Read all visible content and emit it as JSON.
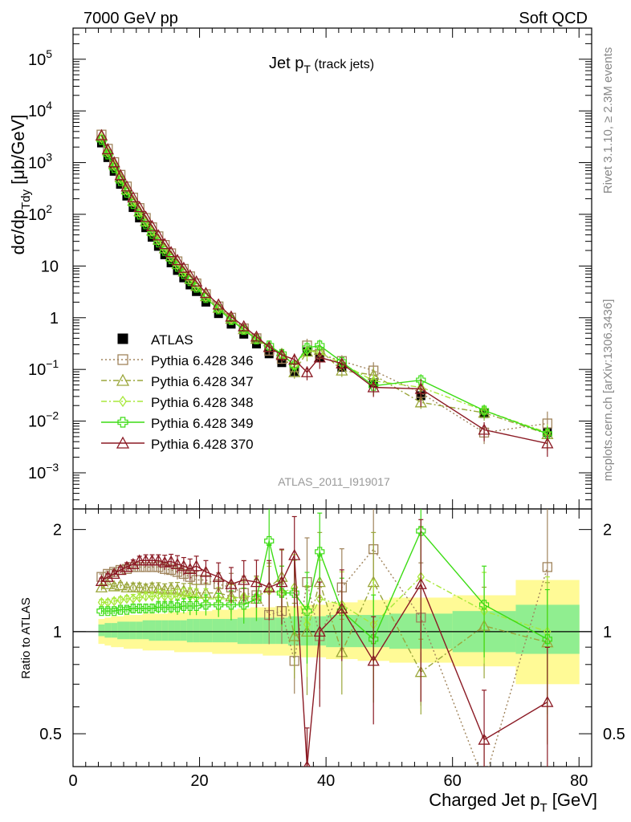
{
  "header": {
    "left_label": "7000 GeV pp",
    "right_label": "Soft QCD"
  },
  "side": {
    "rivet_label": "Rivet 3.1.10, ≥ 2.3M events",
    "mcplots_label": "mcplots.cern.ch [arXiv:1306.3436]"
  },
  "chart_data": {
    "type": "scatter",
    "title": "Jet p",
    "title_sub": "T",
    "title_suffix": " (track jets)",
    "analysis_id": "ATLAS_2011_I919017",
    "xlabel": "Charged Jet p",
    "xlabel_sub": "T",
    "xlabel_suffix": " [GeV]",
    "ylabel": "dσ/dp",
    "ylabel_sub": "Tdy",
    "ylabel_suffix": " [μb/GeV]",
    "ratio_ylabel": "Ratio to ATLAS",
    "xlim": [
      0,
      82
    ],
    "ylim": [
      0.0002,
      400000
    ],
    "yscale": "log",
    "ratio_ylim": [
      0.4,
      2.3
    ],
    "ratio_yscale": "log",
    "x_ticks": [
      "0",
      "20",
      "40",
      "60",
      "80"
    ],
    "y_ticks": [
      "10^-3",
      "10^-2",
      "10^-1",
      "1",
      "10",
      "10^2",
      "10^3",
      "10^4",
      "10^5"
    ],
    "ratio_ticks": [
      "0.5",
      "1",
      "2"
    ],
    "legend_position": "middle-left",
    "data": {
      "name": "ATLAS",
      "x": [
        4.5,
        5.5,
        6.5,
        7.5,
        8.5,
        9.5,
        10.5,
        11.5,
        12.5,
        13.5,
        14.5,
        15.5,
        16.5,
        17.5,
        18.5,
        19.5,
        21,
        23,
        25,
        27,
        29,
        31,
        33,
        35,
        37,
        39,
        42.5,
        47.5,
        55,
        65,
        75
      ],
      "y": [
        2400,
        1250,
        680,
        380,
        225,
        135,
        85,
        55,
        36,
        24,
        16.5,
        11.5,
        8.2,
        5.9,
        4.3,
        3.2,
        2.0,
        1.2,
        0.75,
        0.48,
        0.31,
        0.2,
        0.135,
        0.091,
        0.22,
        0.17,
        0.11,
        0.055,
        0.031,
        0.014,
        0.006
      ]
    },
    "series": [
      {
        "name": "Pythia 6.428 346",
        "color": "#a0845c",
        "marker": "square",
        "dash": "dotted",
        "x": [
          4.5,
          5.5,
          6.5,
          7.5,
          8.5,
          9.5,
          10.5,
          11.5,
          12.5,
          13.5,
          14.5,
          15.5,
          16.5,
          17.5,
          18.5,
          19.5,
          21,
          23,
          25,
          27,
          29,
          31,
          33,
          35,
          37,
          39,
          42.5,
          47.5,
          55,
          65,
          75
        ],
        "y": [
          3480,
          1850,
          1020,
          580,
          345,
          210,
          132,
          85,
          56,
          37.5,
          25.5,
          17.6,
          12.3,
          8.8,
          6.3,
          4.6,
          2.85,
          1.65,
          1.0,
          0.62,
          0.4,
          0.23,
          0.16,
          0.11,
          0.29,
          0.2,
          0.145,
          0.095,
          0.035,
          0.006,
          0.009
        ],
        "ratio": [
          1.45,
          1.48,
          1.5,
          1.52,
          1.53,
          1.55,
          1.55,
          1.55,
          1.55,
          1.55,
          1.53,
          1.52,
          1.5,
          1.48,
          1.45,
          1.42,
          1.42,
          1.38,
          1.35,
          1.3,
          1.28,
          1.12,
          1.15,
          0.82,
          1.4,
          0.97,
          1.35,
          1.75,
          1.1,
          0.35,
          1.55
        ],
        "rerr": [
          0.02,
          0.02,
          0.02,
          0.02,
          0.02,
          0.03,
          0.03,
          0.03,
          0.03,
          0.04,
          0.04,
          0.04,
          0.05,
          0.05,
          0.06,
          0.06,
          0.07,
          0.08,
          0.1,
          0.12,
          0.14,
          0.18,
          0.2,
          0.2,
          0.35,
          0.3,
          0.3,
          0.45,
          0.45,
          0.4,
          0.7
        ]
      },
      {
        "name": "Pythia 6.428 347",
        "color": "#9aa63a",
        "marker": "triangle",
        "dash": "dashdot",
        "x": [
          4.5,
          5.5,
          6.5,
          7.5,
          8.5,
          9.5,
          10.5,
          11.5,
          12.5,
          13.5,
          14.5,
          15.5,
          16.5,
          17.5,
          18.5,
          19.5,
          21,
          23,
          25,
          27,
          29,
          31,
          33,
          35,
          37,
          39,
          42.5,
          47.5,
          55,
          65,
          75
        ],
        "y": [
          3250,
          1730,
          930,
          520,
          305,
          183,
          115,
          74,
          48.5,
          32.5,
          22,
          15.5,
          10.9,
          7.8,
          5.6,
          4.1,
          2.6,
          1.55,
          0.95,
          0.6,
          0.39,
          0.27,
          0.2,
          0.088,
          0.22,
          0.24,
          0.095,
          0.078,
          0.023,
          0.0145,
          0.0056
        ],
        "ratio": [
          1.35,
          1.38,
          1.36,
          1.37,
          1.35,
          1.35,
          1.35,
          1.34,
          1.35,
          1.34,
          1.33,
          1.34,
          1.33,
          1.32,
          1.31,
          1.3,
          1.3,
          1.3,
          1.27,
          1.25,
          1.25,
          1.35,
          1.45,
          0.97,
          1.0,
          1.4,
          0.87,
          1.4,
          0.76,
          1.04,
          0.93
        ],
        "rerr": [
          0.02,
          0.02,
          0.02,
          0.02,
          0.02,
          0.03,
          0.03,
          0.03,
          0.03,
          0.04,
          0.04,
          0.04,
          0.05,
          0.05,
          0.06,
          0.06,
          0.07,
          0.08,
          0.1,
          0.12,
          0.14,
          0.18,
          0.2,
          0.25,
          0.35,
          0.4,
          0.25,
          0.4,
          0.25,
          0.3,
          0.5
        ]
      },
      {
        "name": "Pythia 6.428 348",
        "color": "#a8e83a",
        "marker": "diamond",
        "dash": "dashdot",
        "x": [
          4.5,
          5.5,
          6.5,
          7.5,
          8.5,
          9.5,
          10.5,
          11.5,
          12.5,
          13.5,
          14.5,
          15.5,
          16.5,
          17.5,
          18.5,
          19.5,
          21,
          23,
          25,
          27,
          29,
          31,
          33,
          35,
          37,
          39,
          42.5,
          47.5,
          55,
          65,
          75
        ],
        "y": [
          2950,
          1560,
          860,
          480,
          287,
          172,
          108,
          70,
          46,
          31,
          21,
          14.7,
          10.4,
          7.5,
          5.4,
          4.0,
          2.5,
          1.5,
          0.93,
          0.6,
          0.4,
          0.27,
          0.19,
          0.12,
          0.23,
          0.21,
          0.13,
          0.06,
          0.045,
          0.016,
          0.006
        ],
        "ratio": [
          1.22,
          1.22,
          1.23,
          1.24,
          1.25,
          1.25,
          1.26,
          1.27,
          1.27,
          1.28,
          1.27,
          1.27,
          1.27,
          1.28,
          1.27,
          1.26,
          1.25,
          1.25,
          1.25,
          1.27,
          1.27,
          1.32,
          1.3,
          1.35,
          1.05,
          1.25,
          1.2,
          1.05,
          1.45,
          1.15,
          1.0
        ],
        "rerr": [
          0.02,
          0.02,
          0.02,
          0.02,
          0.02,
          0.03,
          0.03,
          0.03,
          0.03,
          0.04,
          0.04,
          0.04,
          0.05,
          0.05,
          0.06,
          0.06,
          0.07,
          0.08,
          0.1,
          0.12,
          0.14,
          0.18,
          0.2,
          0.25,
          0.3,
          0.3,
          0.25,
          0.35,
          0.4,
          0.3,
          0.45
        ]
      },
      {
        "name": "Pythia 6.428 349",
        "color": "#3cdc14",
        "marker": "cross",
        "dash": "solid",
        "x": [
          4.5,
          5.5,
          6.5,
          7.5,
          8.5,
          9.5,
          10.5,
          11.5,
          12.5,
          13.5,
          14.5,
          15.5,
          16.5,
          17.5,
          18.5,
          19.5,
          21,
          23,
          25,
          27,
          29,
          31,
          33,
          35,
          37,
          39,
          42.5,
          47.5,
          55,
          65,
          75
        ],
        "y": [
          2750,
          1440,
          785,
          440,
          262,
          158,
          99,
          64,
          42,
          28.5,
          19.5,
          13.6,
          9.7,
          7.0,
          5.1,
          3.8,
          2.4,
          1.45,
          0.9,
          0.58,
          0.38,
          0.29,
          0.2,
          0.12,
          0.26,
          0.29,
          0.14,
          0.048,
          0.062,
          0.016,
          0.0057
        ],
        "ratio": [
          1.15,
          1.15,
          1.15,
          1.16,
          1.16,
          1.17,
          1.17,
          1.17,
          1.17,
          1.18,
          1.18,
          1.18,
          1.18,
          1.19,
          1.19,
          1.19,
          1.2,
          1.2,
          1.2,
          1.2,
          1.25,
          1.85,
          1.3,
          1.3,
          1.15,
          1.72,
          1.15,
          0.95,
          1.98,
          1.2,
          0.95
        ],
        "rerr": [
          0.02,
          0.02,
          0.02,
          0.02,
          0.02,
          0.03,
          0.03,
          0.03,
          0.03,
          0.04,
          0.04,
          0.04,
          0.05,
          0.05,
          0.06,
          0.06,
          0.07,
          0.08,
          0.1,
          0.12,
          0.14,
          0.25,
          0.2,
          0.25,
          0.3,
          0.3,
          0.25,
          0.35,
          0.3,
          0.3,
          0.4
        ]
      },
      {
        "name": "Pythia 6.428 370",
        "color": "#8b1a24",
        "marker": "triangle",
        "dash": "solid",
        "x": [
          4.5,
          5.5,
          6.5,
          7.5,
          8.5,
          9.5,
          10.5,
          11.5,
          12.5,
          13.5,
          14.5,
          15.5,
          16.5,
          17.5,
          18.5,
          19.5,
          21,
          23,
          25,
          27,
          29,
          31,
          33,
          35,
          37,
          39,
          42.5,
          47.5,
          55,
          65,
          75
        ],
        "y": [
          3380,
          1810,
          1010,
          570,
          345,
          212,
          138,
          89,
          59,
          39,
          26.5,
          18.5,
          13,
          9.2,
          6.6,
          5.0,
          3.0,
          1.8,
          1.05,
          0.68,
          0.43,
          0.27,
          0.19,
          0.155,
          0.088,
          0.17,
          0.13,
          0.045,
          0.042,
          0.0068,
          0.0037
        ],
        "ratio": [
          1.41,
          1.45,
          1.48,
          1.52,
          1.55,
          1.58,
          1.62,
          1.62,
          1.62,
          1.62,
          1.6,
          1.61,
          1.58,
          1.56,
          1.53,
          1.56,
          1.5,
          1.45,
          1.38,
          1.42,
          1.4,
          1.35,
          1.4,
          1.68,
          0.4,
          1.0,
          1.17,
          0.82,
          1.38,
          0.48,
          0.62
        ],
        "rerr": [
          0.02,
          0.02,
          0.02,
          0.02,
          0.03,
          0.03,
          0.03,
          0.04,
          0.04,
          0.04,
          0.05,
          0.05,
          0.06,
          0.06,
          0.07,
          0.07,
          0.08,
          0.1,
          0.12,
          0.14,
          0.16,
          0.2,
          0.25,
          0.3,
          0.3,
          0.4,
          0.3,
          0.35,
          0.55,
          0.4,
          0.45
        ]
      }
    ],
    "ratio_bands": {
      "edges": [
        4,
        5,
        6,
        7,
        8,
        9,
        10,
        11,
        12,
        13,
        14,
        15,
        16,
        17,
        18,
        19,
        20,
        22,
        24,
        26,
        28,
        30,
        32,
        34,
        36,
        38,
        40,
        45,
        50,
        60,
        70,
        80
      ],
      "inner_lo": [
        0.97,
        0.96,
        0.96,
        0.95,
        0.95,
        0.95,
        0.95,
        0.95,
        0.94,
        0.94,
        0.94,
        0.94,
        0.94,
        0.94,
        0.93,
        0.93,
        0.93,
        0.93,
        0.93,
        0.92,
        0.92,
        0.92,
        0.92,
        0.91,
        0.91,
        0.91,
        0.9,
        0.9,
        0.89,
        0.87,
        0.86
      ],
      "inner_hi": [
        1.05,
        1.06,
        1.06,
        1.07,
        1.07,
        1.07,
        1.07,
        1.08,
        1.08,
        1.08,
        1.08,
        1.08,
        1.08,
        1.08,
        1.09,
        1.09,
        1.09,
        1.09,
        1.09,
        1.1,
        1.1,
        1.1,
        1.1,
        1.11,
        1.11,
        1.11,
        1.12,
        1.12,
        1.13,
        1.15,
        1.2
      ],
      "outer_lo": [
        0.92,
        0.91,
        0.9,
        0.9,
        0.89,
        0.89,
        0.89,
        0.88,
        0.88,
        0.88,
        0.88,
        0.88,
        0.87,
        0.87,
        0.87,
        0.87,
        0.87,
        0.86,
        0.86,
        0.86,
        0.86,
        0.85,
        0.85,
        0.85,
        0.84,
        0.84,
        0.83,
        0.82,
        0.81,
        0.79,
        0.7
      ],
      "outer_hi": [
        1.09,
        1.1,
        1.11,
        1.11,
        1.12,
        1.12,
        1.12,
        1.13,
        1.13,
        1.13,
        1.13,
        1.14,
        1.14,
        1.14,
        1.15,
        1.15,
        1.15,
        1.16,
        1.16,
        1.17,
        1.18,
        1.18,
        1.19,
        1.19,
        1.2,
        1.2,
        1.22,
        1.24,
        1.26,
        1.28,
        1.42
      ]
    },
    "band_colors": {
      "inner": "#90ee90",
      "outer": "#fffa96"
    }
  }
}
